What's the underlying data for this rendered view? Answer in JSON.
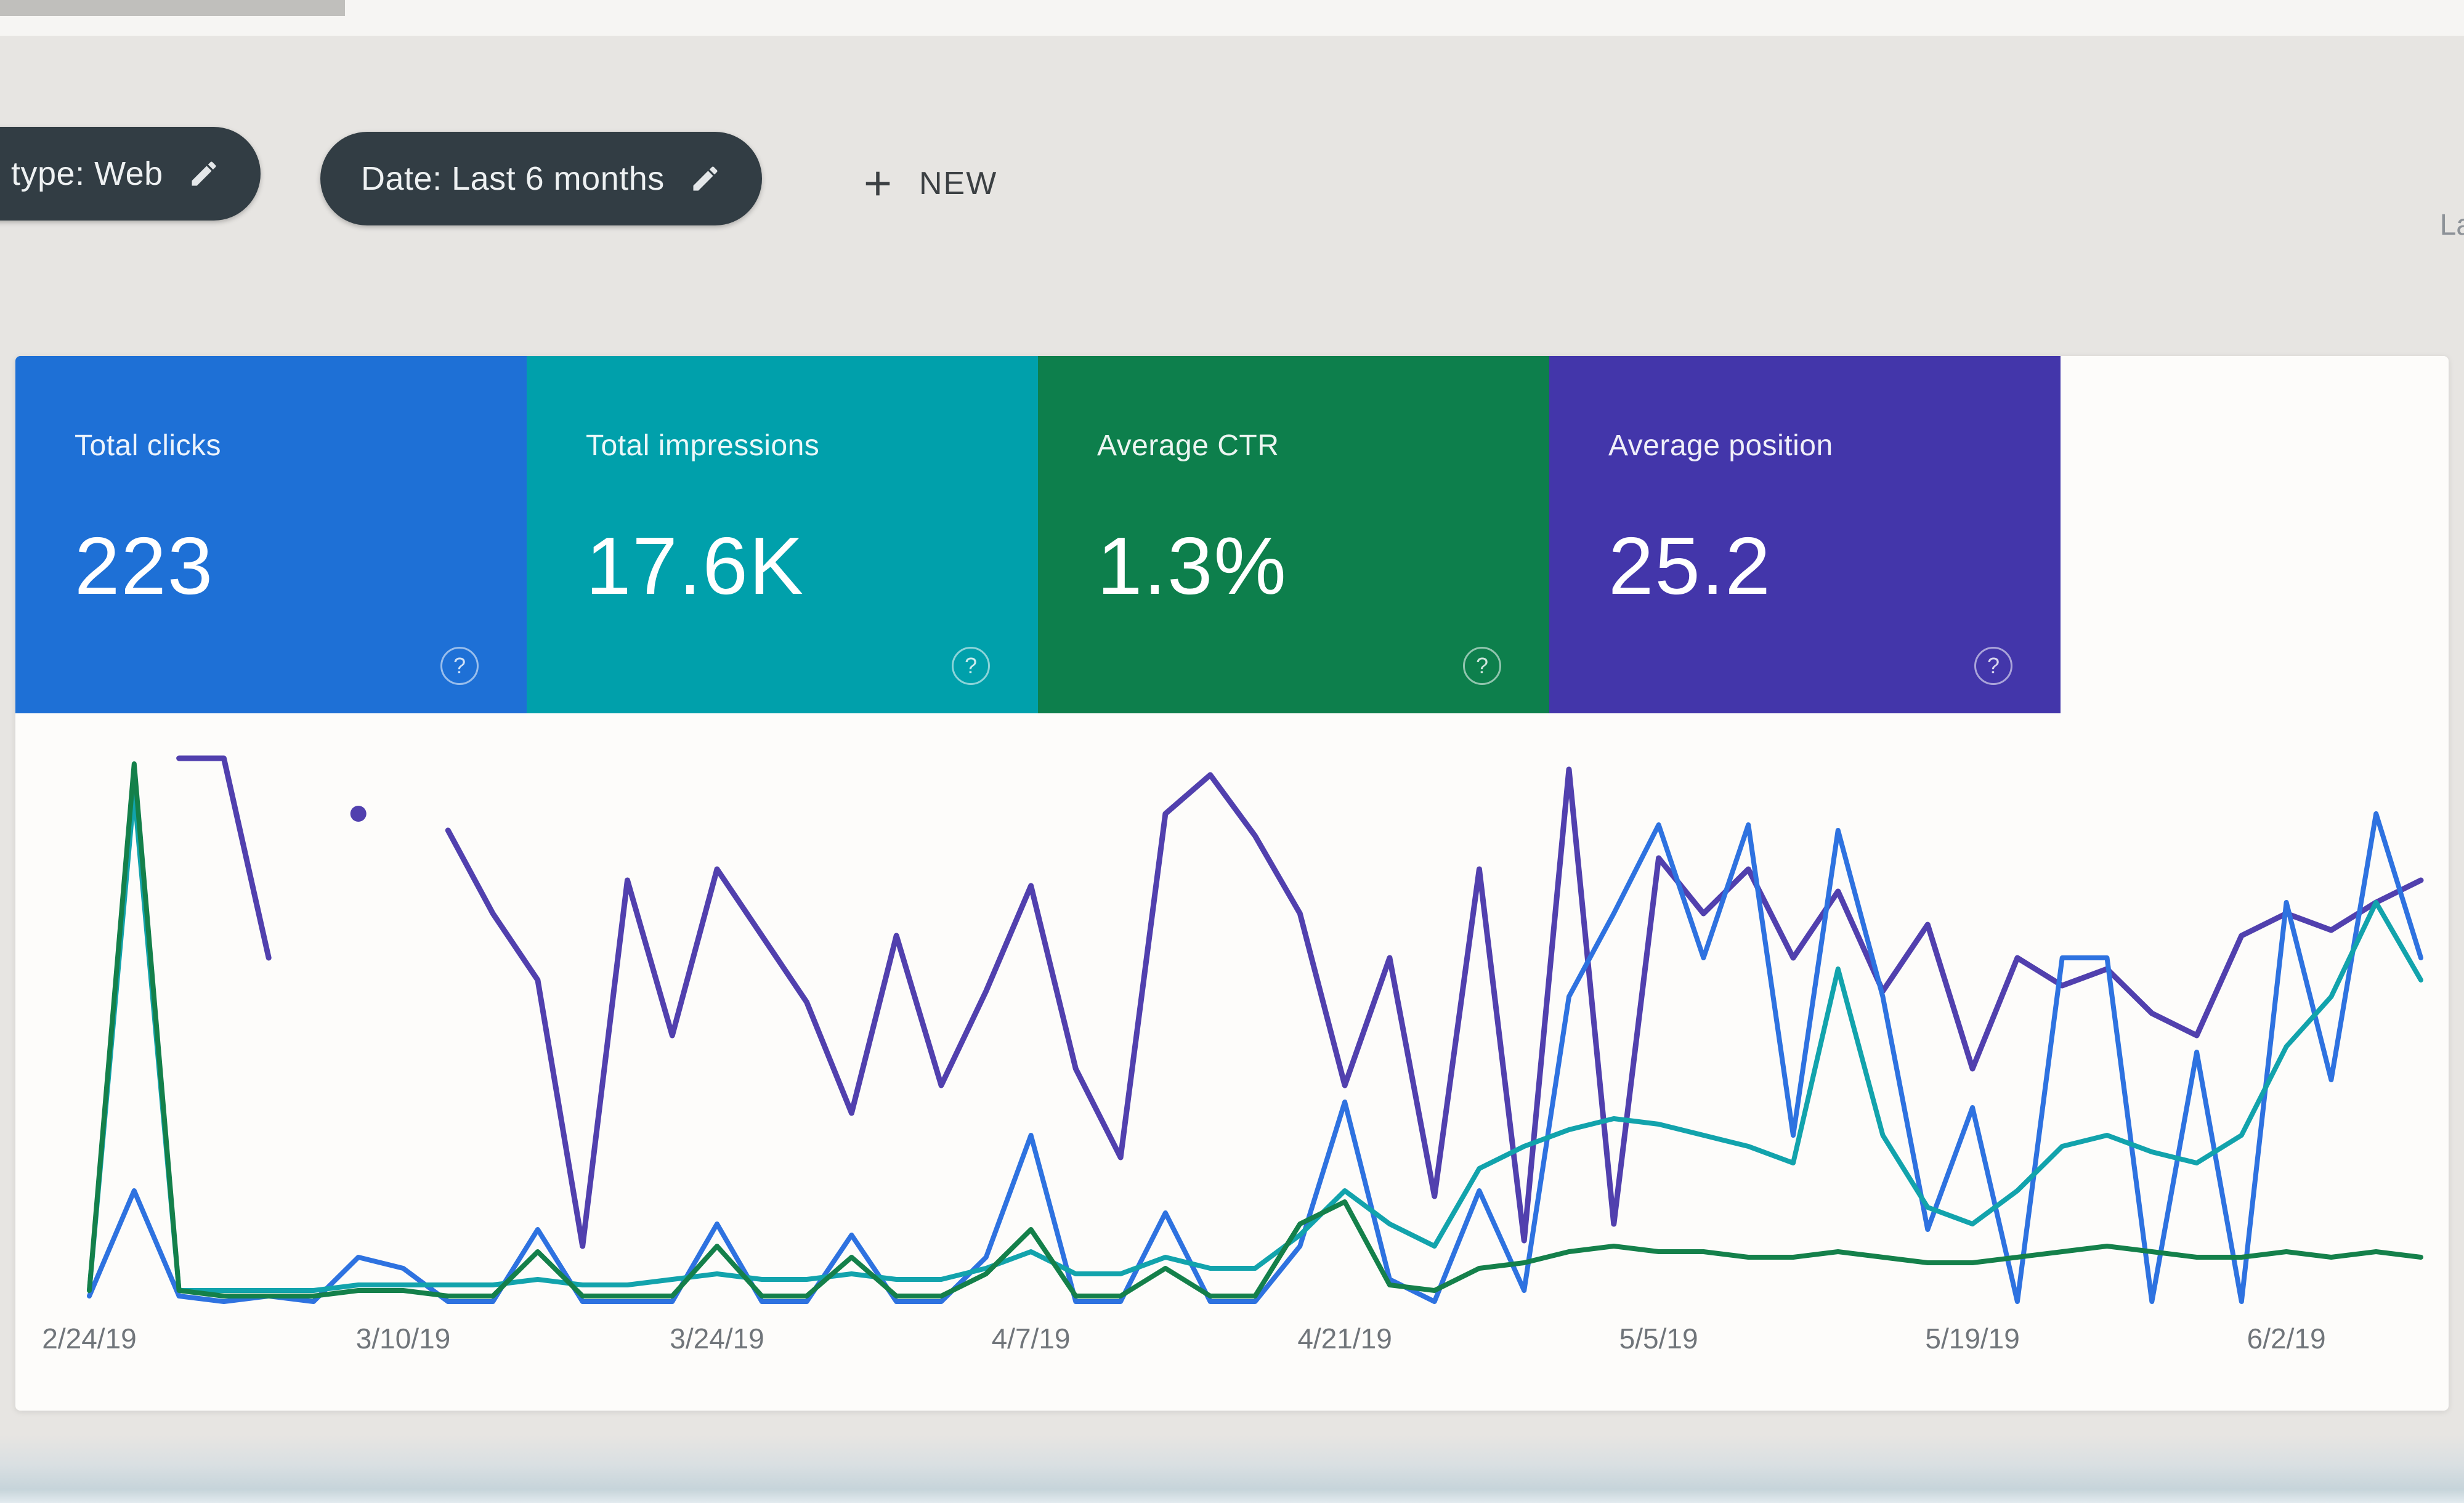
{
  "filter_bar": {
    "search_type_chip": "type: Web",
    "date_chip": "Date: Last 6 months",
    "new_button": "NEW",
    "truncated_right_text": "La",
    "chip_color": "#323d44"
  },
  "icons": {
    "question_mark": "?"
  },
  "summary_cards": [
    {
      "label": "Total clicks",
      "value": "223",
      "color": "#1e70d6"
    },
    {
      "label": "Total impressions",
      "value": "17.6K",
      "color": "#00a0ab"
    },
    {
      "label": "Average CTR",
      "value": "1.3%",
      "color": "#0d7f4c"
    },
    {
      "label": "Average position",
      "value": "25.2",
      "color": "#4336aa"
    }
  ],
  "chart_data": {
    "type": "line",
    "x_labels": [
      "2/24/19",
      "3/10/19",
      "3/24/19",
      "4/7/19",
      "4/21/19",
      "5/5/19",
      "5/19/19",
      "6/2/19"
    ],
    "label_indices": [
      0,
      7,
      14,
      21,
      28,
      35,
      42,
      49
    ],
    "x_range_days": [
      "2/24/19",
      "6/8/19"
    ],
    "y_axis_visible": false,
    "grid": false,
    "legend_position": "none",
    "values_unit": "percent_of_plot_height_estimated",
    "series": [
      {
        "name": "Average position",
        "color": "#5140ae",
        "width": 9,
        "values": [
          null,
          null,
          98,
          98,
          62,
          null,
          88,
          null,
          85,
          70,
          58,
          10,
          76,
          48,
          78,
          66,
          54,
          34,
          66,
          39,
          56,
          75,
          42,
          26,
          88,
          95,
          84,
          70,
          39,
          62,
          19,
          78,
          11,
          96,
          14,
          80,
          70,
          78,
          62,
          74,
          56,
          68,
          42,
          62,
          57,
          60,
          52,
          48,
          66,
          70,
          67,
          72,
          76
        ]
      },
      {
        "name": "Total clicks",
        "color": "#2e72e0",
        "width": 8,
        "values": [
          1,
          20,
          1,
          0,
          1,
          0,
          8,
          6,
          0,
          0,
          13,
          0,
          0,
          0,
          14,
          0,
          0,
          12,
          0,
          0,
          8,
          30,
          0,
          0,
          16,
          0,
          0,
          10,
          36,
          4,
          0,
          20,
          2,
          55,
          70,
          86,
          62,
          86,
          30,
          85,
          55,
          13,
          35,
          0,
          62,
          62,
          0,
          45,
          0,
          72,
          40,
          88,
          62
        ]
      },
      {
        "name": "Total impressions",
        "color": "#12a3ac",
        "width": 8,
        "values": [
          2,
          92,
          2,
          2,
          2,
          2,
          3,
          3,
          3,
          3,
          4,
          3,
          3,
          4,
          5,
          4,
          4,
          5,
          4,
          4,
          6,
          9,
          5,
          5,
          8,
          6,
          6,
          12,
          20,
          14,
          10,
          24,
          28,
          31,
          33,
          32,
          30,
          28,
          25,
          60,
          30,
          17,
          14,
          20,
          28,
          30,
          27,
          25,
          30,
          46,
          55,
          72,
          58
        ]
      },
      {
        "name": "Average CTR",
        "color": "#14804a",
        "width": 8,
        "values": [
          2,
          97,
          2,
          1,
          1,
          1,
          2,
          2,
          1,
          1,
          9,
          1,
          1,
          1,
          10,
          1,
          1,
          8,
          1,
          1,
          5,
          13,
          1,
          1,
          6,
          1,
          1,
          14,
          18,
          3,
          2,
          6,
          7,
          9,
          10,
          9,
          9,
          8,
          8,
          9,
          8,
          7,
          7,
          8,
          9,
          10,
          9,
          8,
          8,
          9,
          8,
          9,
          8
        ]
      }
    ]
  }
}
